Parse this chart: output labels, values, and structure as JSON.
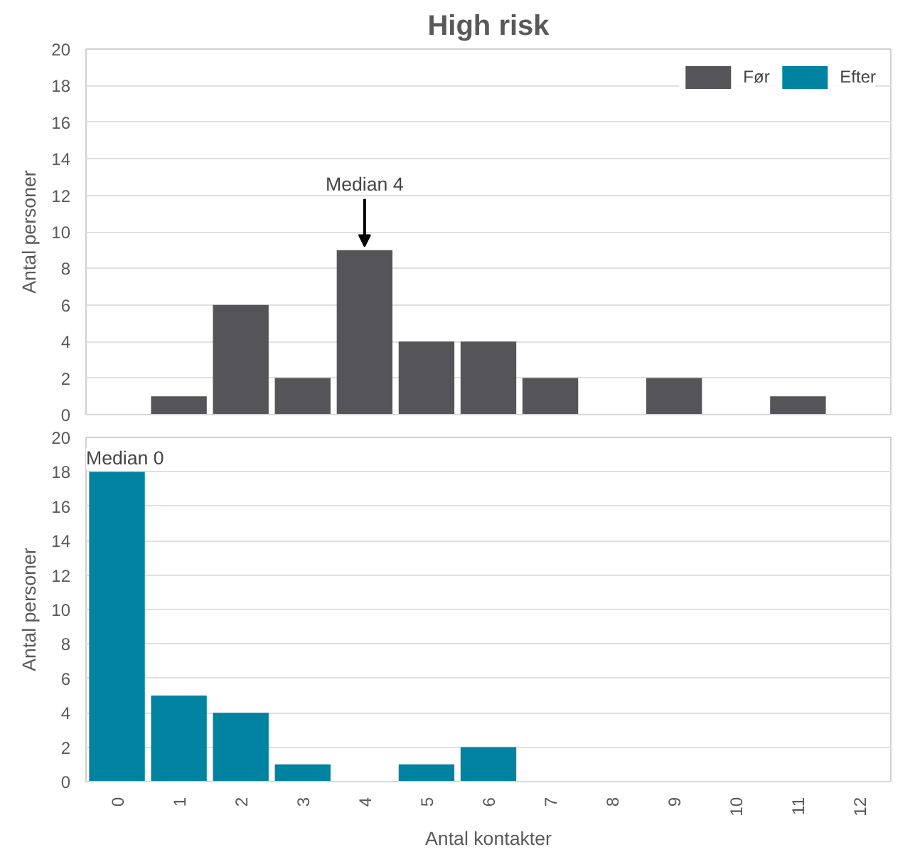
{
  "chart_data": [
    {
      "type": "bar",
      "title": "High risk",
      "ylabel": "Antal personer",
      "categories": [
        "0",
        "1",
        "2",
        "3",
        "4",
        "5",
        "6",
        "7",
        "8",
        "9",
        "10",
        "11",
        "12"
      ],
      "series": [
        {
          "name": "Før",
          "color": "#545459",
          "values": [
            0,
            1,
            6,
            2,
            9,
            4,
            4,
            2,
            0,
            2,
            0,
            1,
            0
          ]
        },
        {
          "name": "Efter",
          "color": "#0083a0",
          "values": [
            null,
            null,
            null,
            null,
            null,
            null,
            null,
            null,
            null,
            null,
            null,
            null,
            null
          ]
        }
      ],
      "ylim": [
        0,
        20
      ],
      "yticks": [
        0,
        2,
        4,
        6,
        8,
        10,
        12,
        14,
        16,
        18,
        20
      ],
      "grid": "y",
      "legend": "top right",
      "tick_labels": "y",
      "annotations": [
        {
          "text": "Median 4",
          "x": "4",
          "y": 9
        }
      ]
    },
    {
      "type": "bar",
      "ylabel": "Antal personer",
      "xlabel": "Antal kontakter",
      "categories": [
        "0",
        "1",
        "2",
        "3",
        "4",
        "5",
        "6",
        "7",
        "8",
        "9",
        "10",
        "11",
        "12"
      ],
      "series": [
        {
          "color": "#0083a0",
          "values": [
            18,
            5,
            4,
            1,
            0,
            1,
            2,
            0,
            0,
            0,
            0,
            0,
            0
          ]
        }
      ],
      "ylim": [
        0,
        20
      ],
      "yticks": [
        0,
        2,
        4,
        6,
        8,
        10,
        12,
        14,
        16,
        18,
        20
      ],
      "grid": "y",
      "annotations": [
        {
          "text": "Median 0",
          "x": "0",
          "y": 18
        }
      ]
    }
  ]
}
